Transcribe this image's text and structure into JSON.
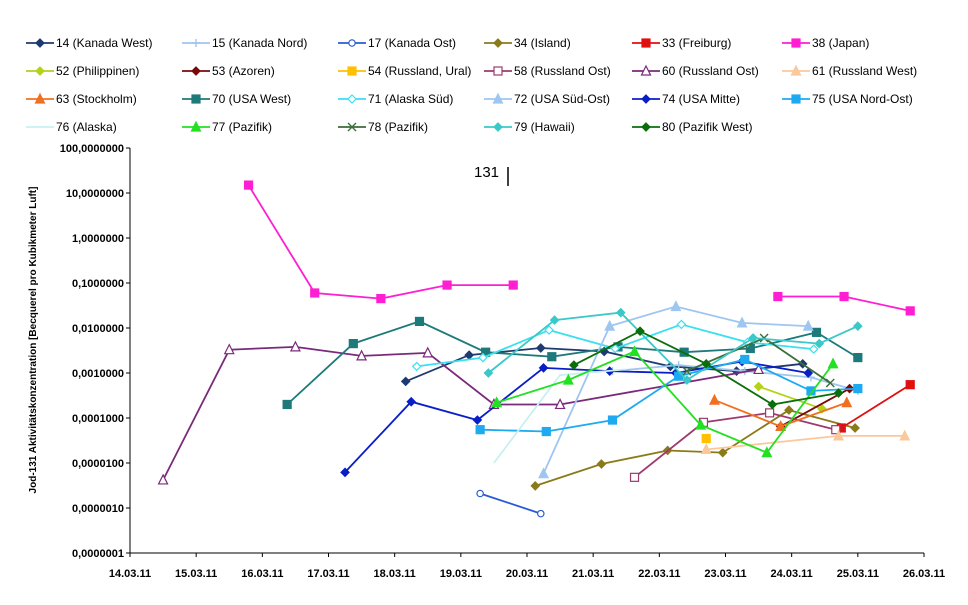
{
  "chart_data": {
    "type": "line",
    "title": "",
    "xlabel": "",
    "ylabel": "Jod-131 Aktivitätskonzentration [Becquerel pro Kubikmeter Luft]",
    "yscale": "log",
    "ylim": [
      1e-07,
      100
    ],
    "xlim": [
      "14.03.11 00:00",
      "26.03.11 00:00"
    ],
    "x_ticks": [
      "14.03.11",
      "15.03.11",
      "16.03.11",
      "17.03.11",
      "18.03.11",
      "19.03.11",
      "20.03.11",
      "21.03.11",
      "22.03.11",
      "23.03.11",
      "24.03.11",
      "25.03.11",
      "26.03.11"
    ],
    "y_ticks": [
      "0,0000001",
      "0,0000010",
      "0,0000100",
      "0,0001000",
      "0,0010000",
      "0,0100000",
      "0,1000000",
      "1,0000000",
      "10,0000000",
      "100,0000000"
    ],
    "legend_position": "top",
    "annotation": "131",
    "series": [
      {
        "name": "14 (Kanada West)",
        "color": "#1f3a6e",
        "marker": "diamond",
        "filled": true,
        "x": [
          "18.03.11 04:00",
          "19.03.11 03:00",
          "20.03.11 05:00",
          "21.03.11 04:00",
          "22.03.11 04:00",
          "23.03.11 04:00",
          "24.03.11 04:00"
        ],
        "y": [
          0.00065,
          0.0025,
          0.0036,
          0.003,
          0.0014,
          0.0011,
          0.0016
        ]
      },
      {
        "name": "15 (Kanada Nord)",
        "color": "#9ec6ef",
        "marker": "plus",
        "filled": false,
        "x": [
          "21.03.11 07:00",
          "22.03.11 07:00",
          "23.03.11 07:00",
          "24.03.11 07:00",
          "25.03.11 00:00"
        ],
        "y": [
          0.0011,
          0.0015,
          0.0011,
          0.0008,
          0.0004
        ]
      },
      {
        "name": "17 (Kanada Ost)",
        "color": "#2a5bd7",
        "marker": "circle",
        "filled": false,
        "x": [
          "19.03.11 07:00",
          "20.03.11 05:00"
        ],
        "y": [
          2.1e-06,
          7.5e-07
        ]
      },
      {
        "name": "34 (Island)",
        "color": "#8a7a1a",
        "marker": "diamond",
        "filled": true,
        "x": [
          "20.03.11 03:00",
          "21.03.11 03:00",
          "22.03.11 03:00",
          "22.03.11 23:00",
          "23.03.11 23:00",
          "24.03.11 23:00"
        ],
        "y": [
          3.1e-06,
          9.5e-06,
          1.9e-05,
          1.7e-05,
          0.00015,
          6e-05
        ]
      },
      {
        "name": "33 (Freiburg)",
        "color": "#e01010",
        "marker": "square",
        "filled": true,
        "x": [
          "24.03.11 18:00",
          "25.03.11 19:00"
        ],
        "y": [
          6e-05,
          0.00055
        ]
      },
      {
        "name": "38 (Japan)",
        "color": "#ff1ed2",
        "marker": "square",
        "filled": true,
        "x": [
          "15.03.11 19:00",
          "16.03.11 19:00",
          "17.03.11 19:00",
          "18.03.11 19:00",
          "19.03.11 19:00"
        ],
        "y": [
          15,
          0.06,
          0.045,
          0.09,
          0.09
        ]
      },
      {
        "name": "38 (Japan)",
        "color": "#ff1ed2",
        "marker": "square",
        "filled": true,
        "x": [
          "23.03.11 19:00",
          "24.03.11 19:00",
          "25.03.11 19:00"
        ],
        "y": [
          0.05,
          0.05,
          0.024
        ]
      },
      {
        "name": "52 (Philippinen)",
        "color": "#b5d11a",
        "marker": "diamond",
        "filled": true,
        "x": [
          "23.03.11 12:00",
          "24.03.11 11:00"
        ],
        "y": [
          0.0005,
          0.00016
        ]
      },
      {
        "name": "53 (Azoren)",
        "color": "#7a0a0a",
        "marker": "diamond",
        "filled": true,
        "x": [
          "23.03.11 20:00",
          "24.03.11 21:00"
        ],
        "y": [
          6.5e-05,
          0.00045
        ]
      },
      {
        "name": "54 (Russland, Ural)",
        "color": "#ffc000",
        "marker": "square",
        "filled": true,
        "x": [
          "22.03.11 17:00"
        ],
        "y": [
          3.5e-05
        ]
      },
      {
        "name": "58 (Russland Ost)",
        "color": "#9e3a6e",
        "marker": "square",
        "filled": false,
        "x": [
          "21.03.11 15:00",
          "22.03.11 16:00",
          "23.03.11 16:00",
          "24.03.11 16:00"
        ],
        "y": [
          4.8e-06,
          8e-05,
          0.00013,
          5.5e-05
        ]
      },
      {
        "name": "60 (Russland Ost)",
        "color": "#7a2a7a",
        "marker": "triangle",
        "filled": false,
        "x": [
          "14.03.11 12:00",
          "15.03.11 12:00",
          "16.03.11 12:00",
          "17.03.11 12:00",
          "18.03.11 12:00",
          "19.03.11 12:00",
          "20.03.11 12:00",
          "23.03.11 12:00"
        ],
        "y": [
          4.2e-06,
          0.0033,
          0.0038,
          0.0024,
          0.0028,
          0.0002,
          0.0002,
          0.0012
        ]
      },
      {
        "name": "61 (Russland West)",
        "color": "#fbc89c",
        "marker": "triangle",
        "filled": true,
        "x": [
          "22.03.11 17:00",
          "24.03.11 17:00",
          "25.03.11 17:00"
        ],
        "y": [
          2e-05,
          4e-05,
          4e-05
        ]
      },
      {
        "name": "63 (Stockholm)",
        "color": "#f07020",
        "marker": "triangle",
        "filled": true,
        "x": [
          "22.03.11 20:00",
          "23.03.11 20:00",
          "24.03.11 20:00"
        ],
        "y": [
          0.00025,
          6.5e-05,
          0.00022
        ]
      },
      {
        "name": "70 (USA West)",
        "color": "#1e7a7a",
        "marker": "square",
        "filled": true,
        "x": [
          "16.03.11 09:00",
          "17.03.11 09:00",
          "18.03.11 09:00",
          "19.03.11 09:00",
          "20.03.11 09:00",
          "21.03.11 09:00",
          "22.03.11 09:00",
          "23.03.11 09:00",
          "24.03.11 09:00",
          "25.03.11 00:00"
        ],
        "y": [
          0.0002,
          0.0045,
          0.014,
          0.0029,
          0.0023,
          0.0038,
          0.0029,
          0.0035,
          0.008,
          0.0022
        ]
      },
      {
        "name": "71 (Alaska Süd)",
        "color": "#3ae0f0",
        "marker": "diamond",
        "filled": false,
        "x": [
          "18.03.11 08:00",
          "19.03.11 08:00",
          "20.03.11 08:00",
          "21.03.11 08:00",
          "22.03.11 08:00",
          "23.03.11 08:00",
          "24.03.11 08:00"
        ],
        "y": [
          0.0014,
          0.0022,
          0.009,
          0.0035,
          0.012,
          0.0048,
          0.0034
        ]
      },
      {
        "name": "72 (USA Süd-Ost)",
        "color": "#9ec6f0",
        "marker": "triangle",
        "filled": true,
        "x": [
          "20.03.11 06:00",
          "21.03.11 06:00",
          "22.03.11 06:00",
          "23.03.11 06:00",
          "24.03.11 06:00"
        ],
        "y": [
          5.8e-06,
          0.011,
          0.03,
          0.013,
          0.011
        ]
      },
      {
        "name": "74 (USA Mitte)",
        "color": "#0a1ec8",
        "marker": "diamond",
        "filled": true,
        "x": [
          "17.03.11 06:00",
          "18.03.11 06:00",
          "19.03.11 06:00",
          "20.03.11 06:00",
          "21.03.11 06:00",
          "22.03.11 06:00",
          "23.03.11 06:00",
          "24.03.11 06:00"
        ],
        "y": [
          6.2e-06,
          0.00023,
          9e-05,
          0.0013,
          0.0011,
          0.001,
          0.0018,
          0.001
        ]
      },
      {
        "name": "75 (USA Nord-Ost)",
        "color": "#1eaaf0",
        "marker": "square",
        "filled": true,
        "x": [
          "19.03.11 07:00",
          "20.03.11 07:00",
          "21.03.11 07:00",
          "22.03.11 07:00",
          "23.03.11 07:00",
          "24.03.11 07:00",
          "25.03.11 00:00"
        ],
        "y": [
          5.5e-05,
          5e-05,
          9e-05,
          0.00085,
          0.002,
          0.0004,
          0.00045
        ]
      },
      {
        "name": "76 (Alaska)",
        "color": "#c8f0f0",
        "marker": "none",
        "filled": false,
        "x": [
          "19.03.11 12:00",
          "20.03.11 12:00",
          "21.03.11 12:00"
        ],
        "y": [
          1e-05,
          0.0009,
          0.0012
        ]
      },
      {
        "name": "77 (Pazifik)",
        "color": "#22e022",
        "marker": "triangle",
        "filled": true,
        "x": [
          "19.03.11 13:00",
          "20.03.11 15:00",
          "21.03.11 15:00",
          "22.03.11 15:00",
          "23.03.11 15:00",
          "24.03.11 15:00"
        ],
        "y": [
          0.00022,
          0.0007,
          0.003,
          7e-05,
          1.7e-05,
          0.0016
        ]
      },
      {
        "name": "78 (Pazifik)",
        "color": "#3a6e3a",
        "marker": "cross",
        "filled": false,
        "x": [
          "22.03.11 10:00",
          "23.03.11 14:00",
          "24.03.11 14:00"
        ],
        "y": [
          0.0011,
          0.006,
          0.0006
        ]
      },
      {
        "name": "79 (Hawaii)",
        "color": "#3ac8c8",
        "marker": "diamond",
        "filled": true,
        "x": [
          "19.03.11 10:00",
          "20.03.11 10:00",
          "21.03.11 10:00",
          "22.03.11 10:00",
          "23.03.11 10:00",
          "24.03.11 10:00",
          "25.03.11 00:00"
        ],
        "y": [
          0.001,
          0.015,
          0.022,
          0.0007,
          0.006,
          0.0045,
          0.011
        ]
      },
      {
        "name": "80 (Pazifik West)",
        "color": "#0a6e0a",
        "marker": "diamond",
        "filled": true,
        "x": [
          "20.03.11 17:00",
          "21.03.11 17:00",
          "22.03.11 17:00",
          "23.03.11 17:00",
          "24.03.11 17:00"
        ],
        "y": [
          0.0015,
          0.0085,
          0.0016,
          0.0002,
          0.00036
        ]
      }
    ]
  }
}
